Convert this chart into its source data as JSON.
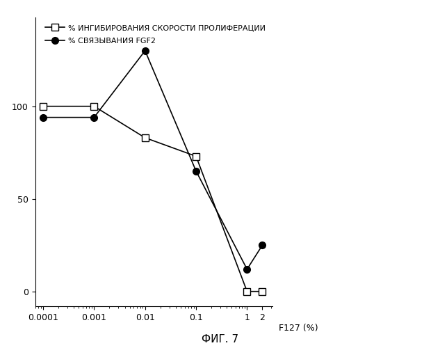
{
  "x_values": [
    0.0001,
    0.001,
    0.01,
    0.1,
    1,
    2
  ],
  "x_ticks": [
    0.0001,
    0.001,
    0.01,
    0.1,
    1,
    2
  ],
  "x_tick_labels": [
    "0.0001",
    "0.001",
    "0.01",
    "0.1",
    "1",
    "2"
  ],
  "x_label": "F127 (%)",
  "y_ticks": [
    0,
    50,
    100
  ],
  "y_lim": [
    -8,
    148
  ],
  "series1_label": "% ИНГИБИРОВАНИЯ СКОРОСТИ ПРОЛИФЕРАЦИИ",
  "series1_y": [
    100,
    100,
    83,
    73,
    0,
    0
  ],
  "series1_marker": "s",
  "series1_color": "black",
  "series1_markerfacecolor": "white",
  "series2_label": "% СВЯЗЫВАНИЯ FGF2",
  "series2_y": [
    94,
    94,
    130,
    65,
    12,
    25
  ],
  "series2_marker": "o",
  "series2_color": "black",
  "series2_markerfacecolor": "black",
  "fig_label": "ФИГ. 7",
  "background_color": "#ffffff",
  "linewidth": 1.2,
  "markersize": 7
}
